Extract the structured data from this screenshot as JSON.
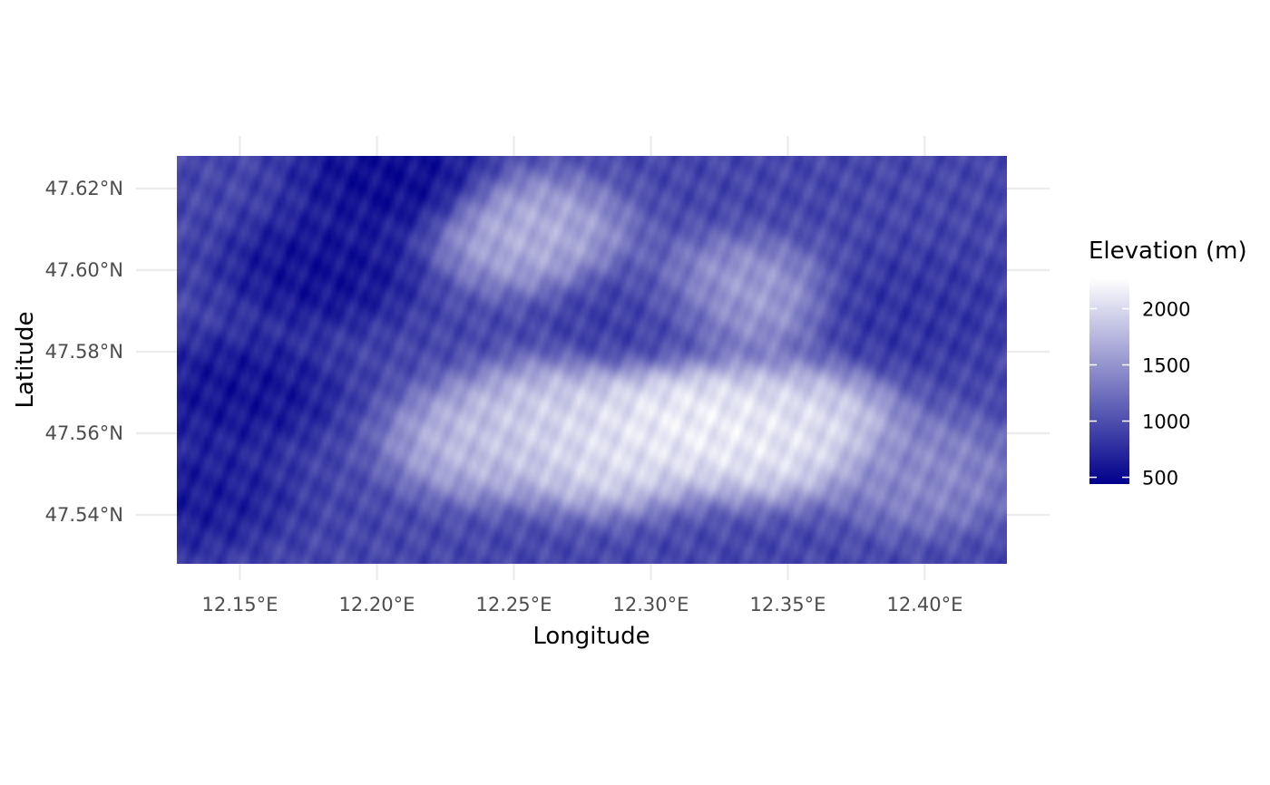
{
  "chart_data": {
    "type": "heatmap",
    "title": "",
    "xlabel": "Longitude",
    "ylabel": "Latitude",
    "xlim": [
      12.127,
      12.43
    ],
    "ylim": [
      47.528,
      47.628
    ],
    "x_ticks": [
      {
        "value": 12.15,
        "label": "12.15°E"
      },
      {
        "value": 12.2,
        "label": "12.20°E"
      },
      {
        "value": 12.25,
        "label": "12.25°E"
      },
      {
        "value": 12.3,
        "label": "12.30°E"
      },
      {
        "value": 12.35,
        "label": "12.35°E"
      },
      {
        "value": 12.4,
        "label": "12.40°E"
      }
    ],
    "y_ticks": [
      {
        "value": 47.54,
        "label": "47.54°N"
      },
      {
        "value": 47.56,
        "label": "47.56°N"
      },
      {
        "value": 47.58,
        "label": "47.58°N"
      },
      {
        "value": 47.6,
        "label": "47.60°N"
      },
      {
        "value": 47.62,
        "label": "47.62°N"
      }
    ],
    "grid": true,
    "legend": {
      "title": "Elevation (m)",
      "placement": "right",
      "breaks": [
        {
          "value": 500,
          "label": "500"
        },
        {
          "value": 1000,
          "label": "1000"
        },
        {
          "value": 1500,
          "label": "1500"
        },
        {
          "value": 2000,
          "label": "2000"
        }
      ],
      "range": [
        440,
        2270
      ],
      "color_low": "#00008b",
      "color_high": "#ffffff"
    },
    "elevation_features": [
      {
        "kind": "lowland",
        "lon": 12.205,
        "lat": 47.622,
        "elevation": 480
      },
      {
        "kind": "lowland",
        "lon": 12.18,
        "lat": 47.6,
        "elevation": 520
      },
      {
        "kind": "lowland",
        "lon": 12.15,
        "lat": 47.57,
        "elevation": 540
      },
      {
        "kind": "lowland",
        "lon": 12.133,
        "lat": 47.545,
        "elevation": 600
      },
      {
        "kind": "valley",
        "lon": 12.3,
        "lat": 47.588,
        "elevation": 850
      },
      {
        "kind": "valley",
        "lon": 12.395,
        "lat": 47.59,
        "elevation": 800
      },
      {
        "kind": "peak",
        "lon": 12.256,
        "lat": 47.609,
        "elevation": 1800
      },
      {
        "kind": "peak",
        "lon": 12.285,
        "lat": 47.555,
        "elevation": 2150
      },
      {
        "kind": "peak",
        "lon": 12.305,
        "lat": 47.564,
        "elevation": 2200
      },
      {
        "kind": "peak",
        "lon": 12.32,
        "lat": 47.562,
        "elevation": 2250
      },
      {
        "kind": "peak",
        "lon": 12.343,
        "lat": 47.558,
        "elevation": 2200
      },
      {
        "kind": "peak",
        "lon": 12.355,
        "lat": 47.562,
        "elevation": 2100
      },
      {
        "kind": "peak",
        "lon": 12.24,
        "lat": 47.558,
        "elevation": 1900
      },
      {
        "kind": "peak",
        "lon": 12.265,
        "lat": 47.563,
        "elevation": 2050
      },
      {
        "kind": "peak",
        "lon": 12.33,
        "lat": 47.593,
        "elevation": 1700
      },
      {
        "kind": "peak",
        "lon": 12.4,
        "lat": 47.55,
        "elevation": 1500
      }
    ]
  }
}
